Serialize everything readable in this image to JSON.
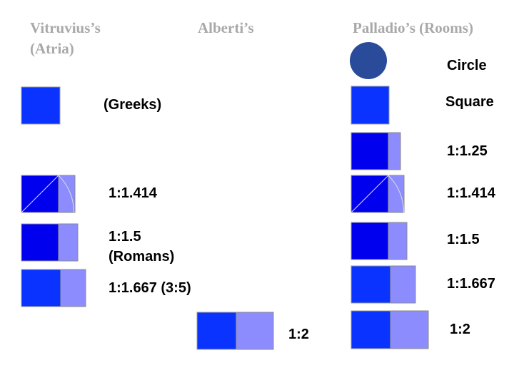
{
  "headers": [
    "Vitruvius’s (Atria)",
    "Alberti’s",
    "Palladio’s (Rooms)"
  ],
  "vitruvius": [
    "(Greeks)",
    "1:1.414",
    "1:1.5 (Romans)",
    "1:1.667 (3:5)"
  ],
  "alberti": [
    "1:2"
  ],
  "palladio": [
    "Circle",
    "Square",
    "1:1.25",
    "1:1.414",
    "1:1.5",
    "1:1.667",
    "1:2"
  ]
}
